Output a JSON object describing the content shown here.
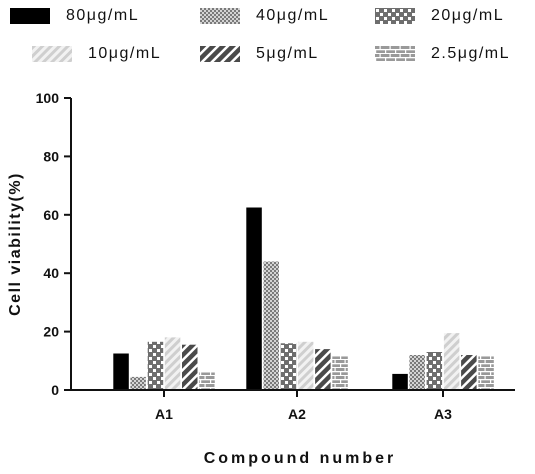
{
  "chart_data": {
    "type": "bar",
    "title": "",
    "xlabel": "Compound number",
    "ylabel": "Cell viability(%)",
    "ylim": [
      0,
      100
    ],
    "yticks": [
      "0",
      "20",
      "40",
      "60",
      "80",
      "100"
    ],
    "categories": [
      "A1",
      "A2",
      "A3"
    ],
    "grid": false,
    "legend_position": "top",
    "series": [
      {
        "name": "80μg/mL",
        "pattern": "solid",
        "color": "#000000",
        "values": [
          12.5,
          62.5,
          5.5
        ]
      },
      {
        "name": "40μg/mL",
        "pattern": "dots",
        "color": "#9a9a9a",
        "values": [
          4.5,
          44,
          12
        ]
      },
      {
        "name": "20μg/mL",
        "pattern": "checker",
        "color": "#7a7a7a",
        "values": [
          16.5,
          16,
          13
        ]
      },
      {
        "name": "10μg/mL",
        "pattern": "diag-light",
        "color": "#d8d8d8",
        "values": [
          18,
          16.5,
          19.5
        ]
      },
      {
        "name": "5μg/mL",
        "pattern": "diag-dark",
        "color": "#555555",
        "values": [
          15.5,
          14,
          12
        ]
      },
      {
        "name": "2.5μg/mL",
        "pattern": "brick",
        "color": "#8c8c8c",
        "values": [
          6,
          11.5,
          11.5
        ]
      }
    ]
  }
}
